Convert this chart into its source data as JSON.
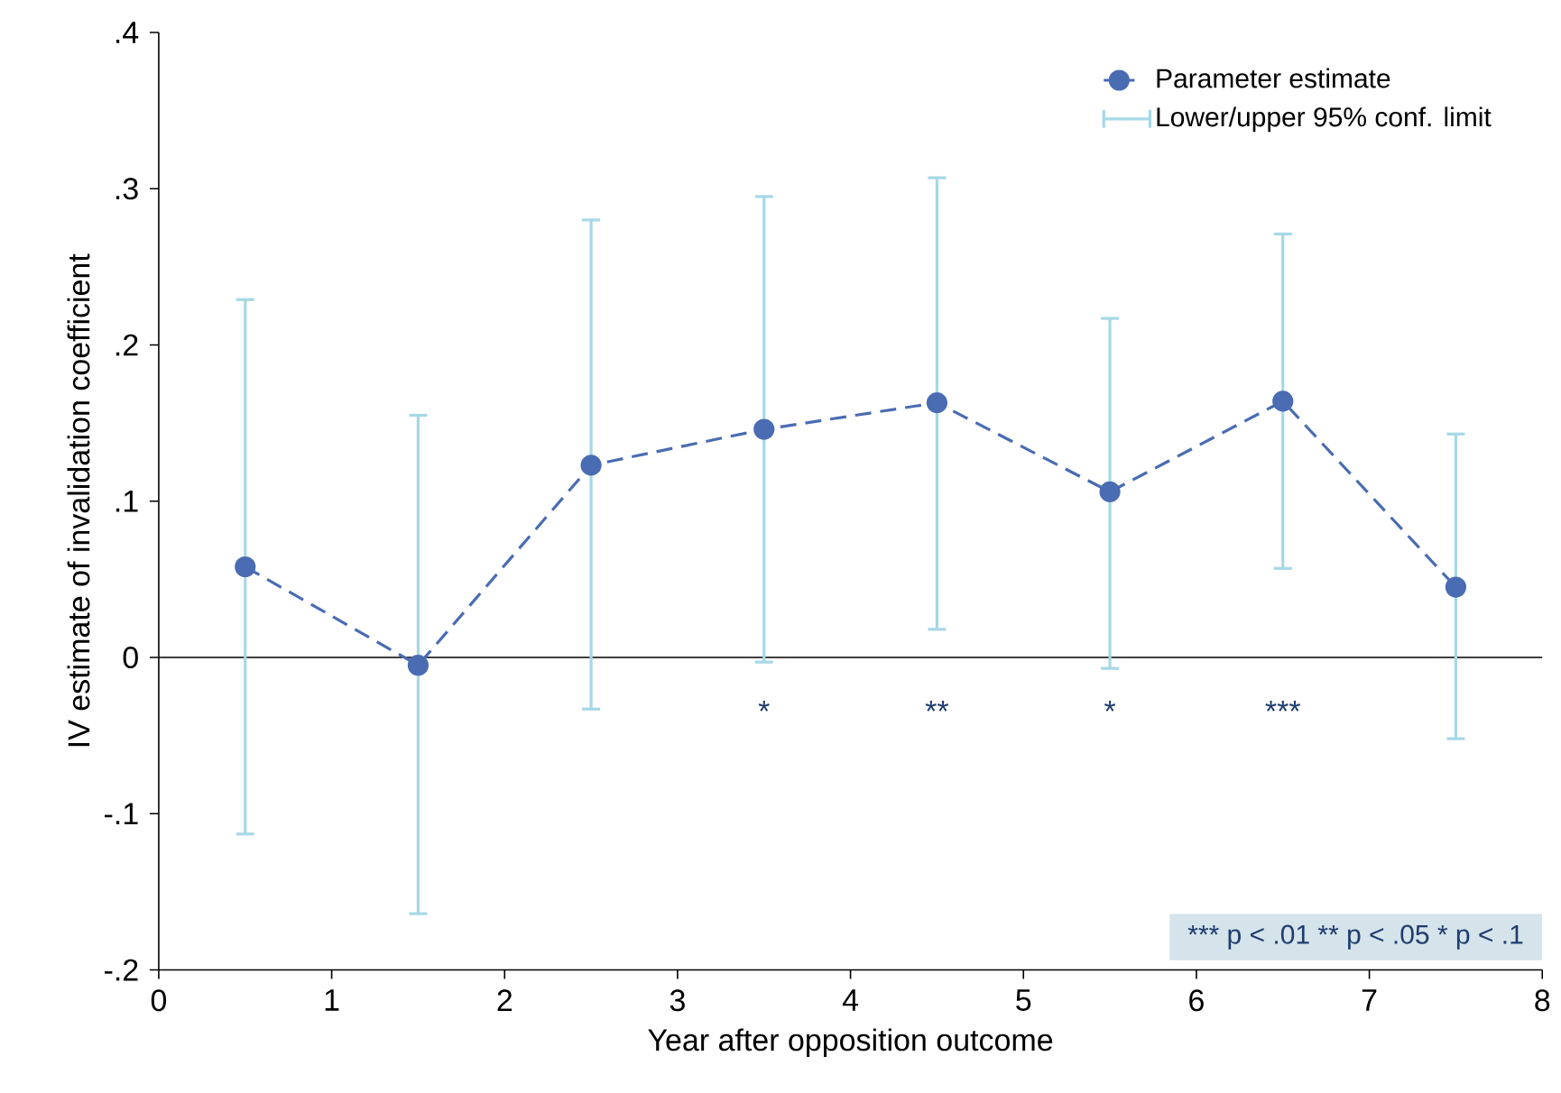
{
  "chart_data": {
    "type": "line",
    "xlabel": "Year after opposition outcome",
    "ylabel": "IV estimate of invalidation coefficient",
    "x": [
      0.5,
      1.5,
      2.5,
      3.5,
      4.5,
      5.5,
      6.5,
      7.5
    ],
    "series": [
      {
        "name": "Parameter estimate",
        "color": "#4a6cb3",
        "values": [
          0.058,
          -0.005,
          0.123,
          0.146,
          0.163,
          0.106,
          0.164,
          0.045
        ],
        "marker": "circle",
        "line_style": "dashed",
        "errors": [
          [
            -0.113,
            0.229
          ],
          [
            -0.164,
            0.155
          ],
          [
            -0.033,
            0.28
          ],
          [
            -0.003,
            0.295
          ],
          [
            0.018,
            0.307
          ],
          [
            -0.007,
            0.217
          ],
          [
            0.057,
            0.271
          ],
          [
            -0.052,
            0.143
          ]
        ]
      }
    ],
    "xlim": [
      0,
      8
    ],
    "ylim": [
      -0.2,
      0.4
    ],
    "xticks": [
      0,
      1,
      2,
      3,
      4,
      5,
      6,
      7,
      8
    ],
    "yticks": [
      {
        "value": -0.2,
        "label": "-.2"
      },
      {
        "value": -0.1,
        "label": "-.1"
      },
      {
        "value": 0,
        "label": "0"
      },
      {
        "value": 0.1,
        "label": ".1"
      },
      {
        "value": 0.2,
        "label": ".2"
      },
      {
        "value": 0.3,
        "label": ".3"
      },
      {
        "value": 0.4,
        "label": ".4"
      }
    ],
    "ref_lines": [
      {
        "axis": "y",
        "value": 0,
        "color": "#000000"
      }
    ],
    "annotations": [
      "*",
      "**",
      "*",
      "***",
      "Lower/upper 95% conf. limit",
      "***  p < .01     **  p < .05     *  p < .1"
    ],
    "legend": "top right",
    "grid": false
  }
}
